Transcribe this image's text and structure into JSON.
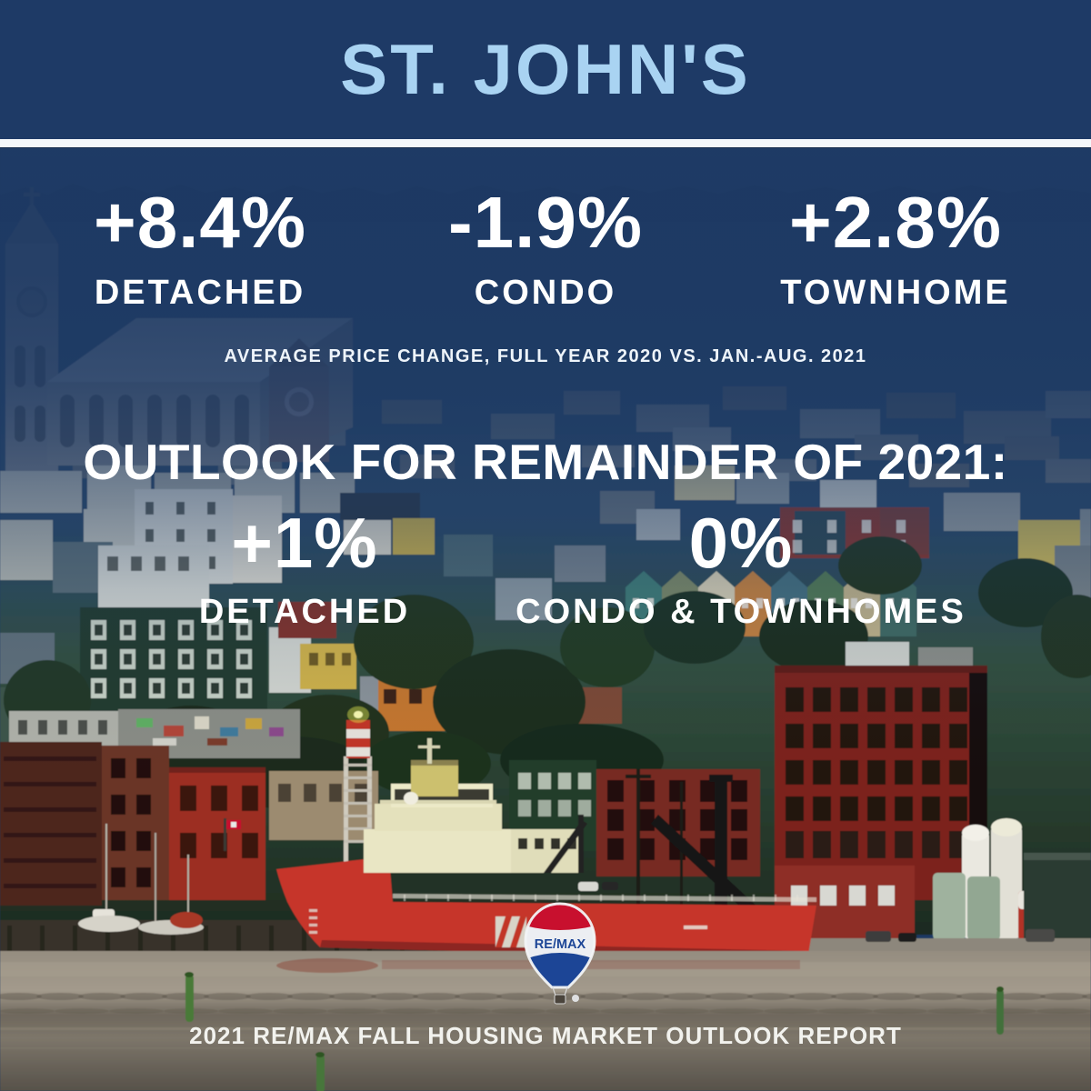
{
  "header": {
    "title": "ST. JOHN'S"
  },
  "price_change": {
    "caption": "AVERAGE PRICE CHANGE, FULL YEAR 2020 VS. JAN.-AUG. 2021",
    "items": [
      {
        "value": "+8.4%",
        "label": "DETACHED"
      },
      {
        "value": "-1.9%",
        "label": "CONDO"
      },
      {
        "value": "+2.8%",
        "label": "TOWNHOME"
      }
    ]
  },
  "outlook": {
    "heading": "OUTLOOK FOR REMAINDER OF 2021:",
    "items": [
      {
        "value": "+1%",
        "label": "DETACHED"
      },
      {
        "value": "0%",
        "label": "CONDO & TOWNHOMES"
      }
    ]
  },
  "logo": {
    "wordmark": "RE/MAX"
  },
  "footer": {
    "text": "2021 RE/MAX FALL HOUSING MARKET OUTLOOK REPORT"
  },
  "colors": {
    "header_bg": "#1e3a66",
    "title_text": "#a9d3f2",
    "body_text": "#ffffff",
    "remax_red": "#c8102e",
    "remax_blue": "#1c4596",
    "overlay_navy": "#1d3963"
  }
}
